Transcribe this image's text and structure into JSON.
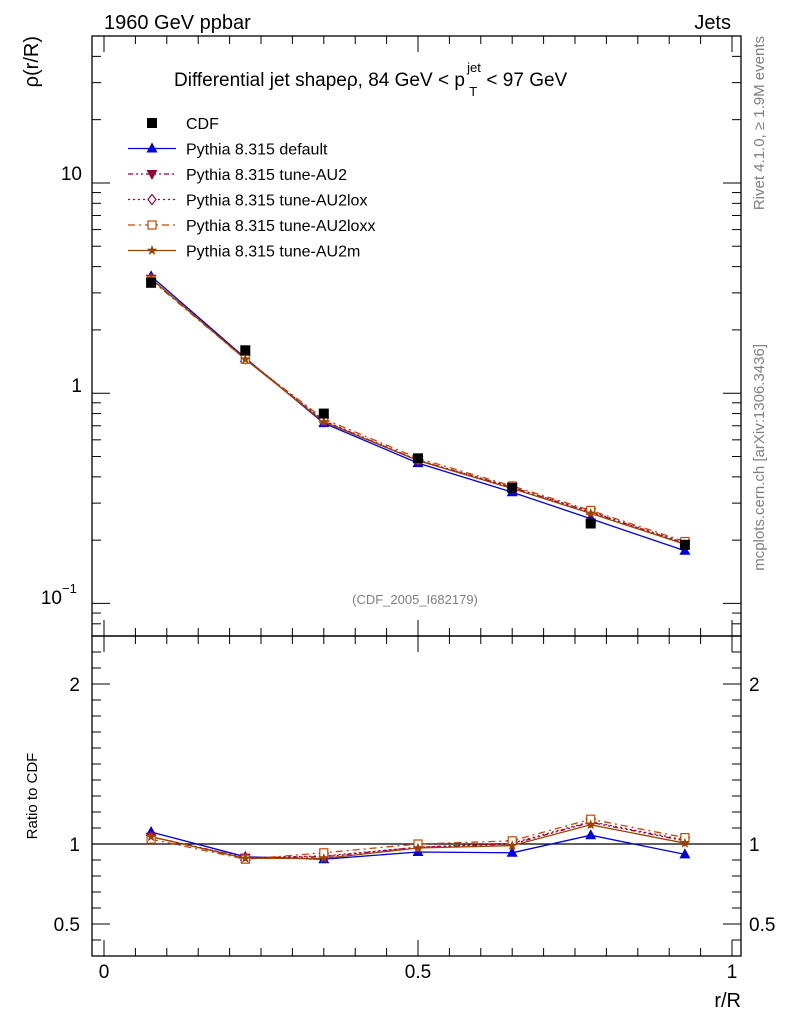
{
  "header": {
    "left": "1960 GeV ppbar",
    "right": "Jets",
    "side_top": "Rivet 4.1.0, ≥ 1.9M events",
    "side_bottom": "mcplots.cern.ch [arXiv:1306.3436]"
  },
  "chart_data": [
    {
      "type": "line",
      "panel": "main",
      "title_parts": {
        "prefix": "Differential jet shapeρ, 84 GeV < p",
        "sup": "jet",
        "sub": "T",
        "suffix": " < 97 GeV"
      },
      "watermark": "(CDF_2005_I682179)",
      "xlabel": "r/R",
      "ylabel": "ρ(r/R)",
      "yscale": "log",
      "xlim": [
        0,
        1
      ],
      "ylim": [
        0.07,
        50
      ],
      "ytick_labels": {
        "main": [
          "10",
          "1",
          "10"
        ],
        "sup": "−1"
      },
      "legend_position": "top-left",
      "x": [
        0.075,
        0.225,
        0.35,
        0.5,
        0.65,
        0.775,
        0.925
      ],
      "series": [
        {
          "name": "CDF",
          "style": "points",
          "marker": "square",
          "color": "#000000",
          "values": [
            3.35,
            1.6,
            0.8,
            0.49,
            0.355,
            0.24,
            0.19
          ]
        },
        {
          "name": "Pythia 8.315 default",
          "style": "solid",
          "marker": "triangle-up",
          "color": "#0000dd",
          "values": [
            3.6,
            1.47,
            0.72,
            0.465,
            0.338,
            0.253,
            0.178
          ]
        },
        {
          "name": "Pythia 8.315 tune-AU2",
          "style": "dash-dot-dot",
          "marker": "triangle-down",
          "color": "#990033",
          "values": [
            3.5,
            1.46,
            0.735,
            0.48,
            0.356,
            0.272,
            0.193
          ]
        },
        {
          "name": "Pythia 8.315 tune-AU2lox",
          "style": "dotted",
          "marker": "diamond-open",
          "color": "#aa0044",
          "values": [
            3.5,
            1.46,
            0.74,
            0.48,
            0.357,
            0.273,
            0.194
          ]
        },
        {
          "name": "Pythia 8.315 tune-AU2loxx",
          "style": "dash-dot",
          "marker": "square-open",
          "color": "#cc4400",
          "values": [
            3.45,
            1.45,
            0.755,
            0.49,
            0.362,
            0.277,
            0.197
          ]
        },
        {
          "name": "Pythia 8.315 tune-AU2m",
          "style": "solid",
          "marker": "star",
          "color": "#994400",
          "values": [
            3.5,
            1.45,
            0.73,
            0.478,
            0.352,
            0.268,
            0.191
          ]
        }
      ]
    },
    {
      "type": "line",
      "panel": "ratio",
      "xlabel": "r/R",
      "ylabel": "Ratio to CDF",
      "xlim": [
        0,
        1
      ],
      "ylim": [
        0.3,
        2.3
      ],
      "yticks": [
        0.5,
        1,
        2
      ],
      "ytick_labels": [
        "0.5",
        "1",
        "2"
      ],
      "xticks": [
        0,
        0.5,
        1
      ],
      "xtick_labels": [
        "0",
        "0.5",
        "1"
      ],
      "reference_line": 1,
      "x": [
        0.075,
        0.225,
        0.35,
        0.5,
        0.65,
        0.775,
        0.925
      ],
      "series": [
        {
          "name": "Pythia 8.315 default",
          "style": "solid",
          "marker": "triangle-up",
          "color": "#0000dd",
          "values": [
            1.075,
            0.92,
            0.905,
            0.95,
            0.945,
            1.055,
            0.935
          ]
        },
        {
          "name": "Pythia 8.315 tune-AU2",
          "style": "dash-dot-dot",
          "marker": "triangle-down",
          "color": "#990033",
          "values": [
            1.045,
            0.915,
            0.92,
            0.98,
            1.0,
            1.135,
            1.02
          ]
        },
        {
          "name": "Pythia 8.315 tune-AU2lox",
          "style": "dotted",
          "marker": "diamond-open",
          "color": "#aa0044",
          "values": [
            1.045,
            0.915,
            0.925,
            0.98,
            1.005,
            1.14,
            1.025
          ]
        },
        {
          "name": "Pythia 8.315 tune-AU2loxx",
          "style": "dash-dot",
          "marker": "square-open",
          "color": "#cc4400",
          "values": [
            1.03,
            0.905,
            0.945,
            1.0,
            1.02,
            1.155,
            1.04
          ]
        },
        {
          "name": "Pythia 8.315 tune-AU2m",
          "style": "solid",
          "marker": "star",
          "color": "#994400",
          "values": [
            1.045,
            0.91,
            0.91,
            0.975,
            0.99,
            1.12,
            1.005
          ]
        }
      ]
    }
  ]
}
